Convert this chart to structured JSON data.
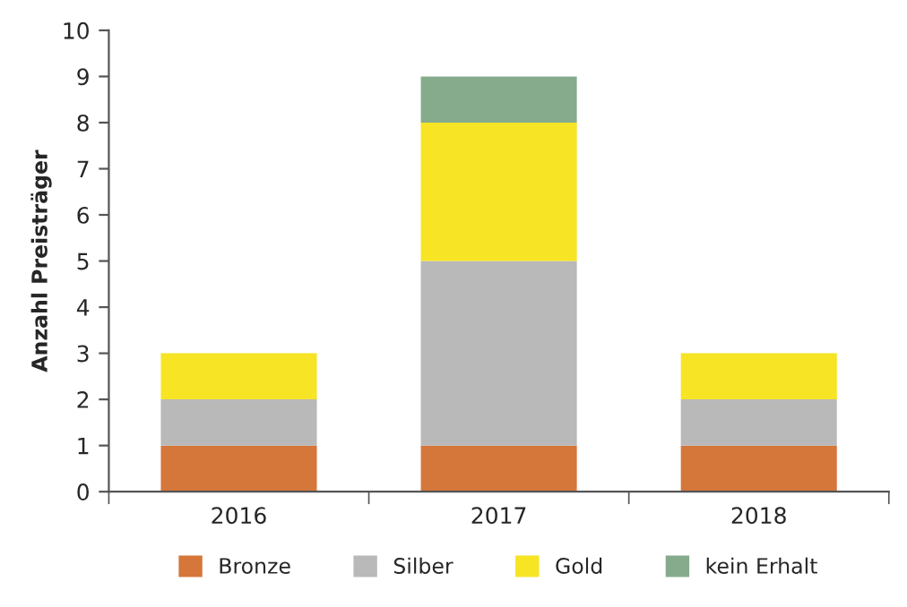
{
  "chart_data": {
    "type": "bar",
    "stacked": true,
    "ylabel": "Anzahl Preisträger",
    "categories": [
      "2016",
      "2017",
      "2018"
    ],
    "series": [
      {
        "name": "Bronze",
        "color": "#d5763a",
        "values": [
          1,
          1,
          1
        ]
      },
      {
        "name": "Silber",
        "color": "#b9b9b9",
        "values": [
          1,
          4,
          1
        ]
      },
      {
        "name": "Gold",
        "color": "#f7e424",
        "values": [
          1,
          3,
          1
        ]
      },
      {
        "name": "kein Erhalt",
        "color": "#86ab8c",
        "values": [
          null,
          1,
          null
        ]
      }
    ],
    "ylim": [
      0,
      10
    ],
    "yticks": [
      0,
      1,
      2,
      3,
      4,
      5,
      6,
      7,
      8,
      9,
      10
    ],
    "grid": false,
    "legend": "bottom"
  }
}
